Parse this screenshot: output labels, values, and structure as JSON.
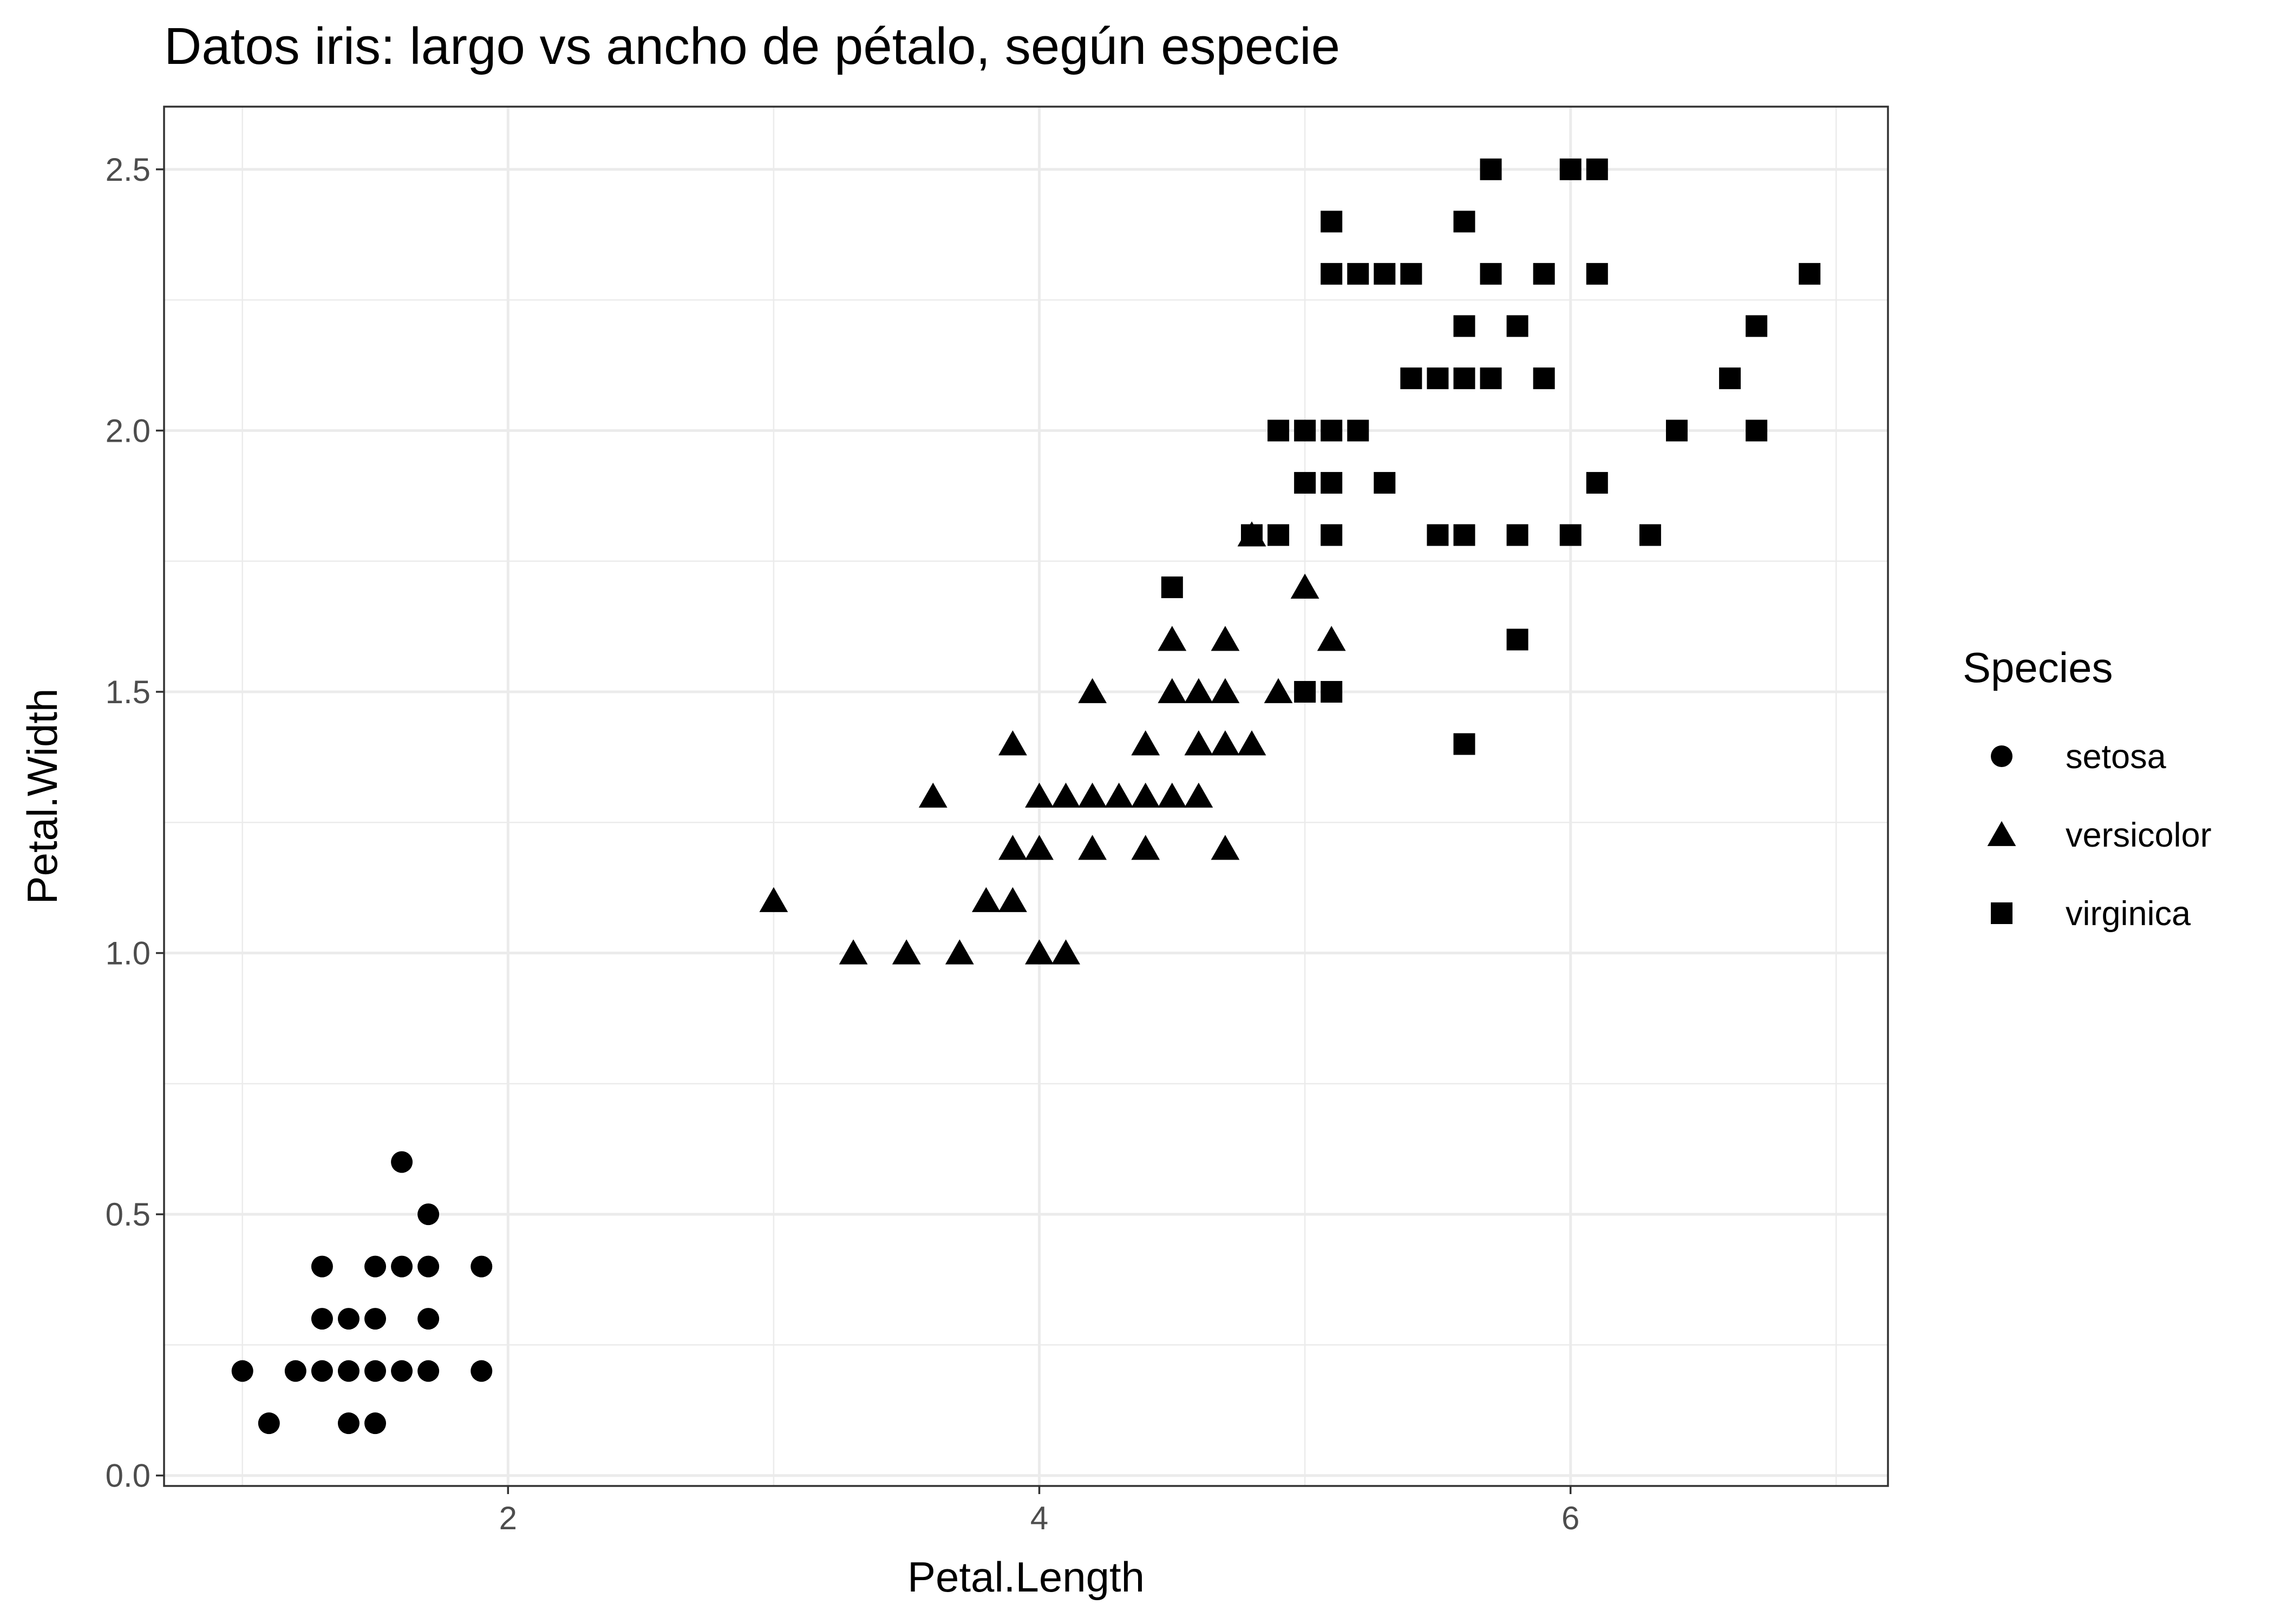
{
  "chart_data": {
    "type": "scatter",
    "title": "Datos iris: largo vs ancho de pétalo, según especie",
    "xlabel": "Petal.Length",
    "ylabel": "Petal.Width",
    "xlim": [
      0.705,
      7.195
    ],
    "ylim": [
      -0.02,
      2.62
    ],
    "xticks": [
      2,
      4,
      6
    ],
    "yticks": [
      0.0,
      0.5,
      1.0,
      1.5,
      2.0,
      2.5
    ],
    "ytick_labels": [
      "0.0",
      "0.5",
      "1.0",
      "1.5",
      "2.0",
      "2.5"
    ],
    "grid": true,
    "legend": {
      "title": "Species",
      "position": "right"
    },
    "series": [
      {
        "name": "setosa",
        "marker": "circle",
        "color": "#000000",
        "points": [
          [
            1.0,
            0.2
          ],
          [
            1.1,
            0.1
          ],
          [
            1.2,
            0.2
          ],
          [
            1.3,
            0.2
          ],
          [
            1.3,
            0.3
          ],
          [
            1.3,
            0.4
          ],
          [
            1.4,
            0.1
          ],
          [
            1.4,
            0.2
          ],
          [
            1.4,
            0.3
          ],
          [
            1.5,
            0.1
          ],
          [
            1.5,
            0.2
          ],
          [
            1.5,
            0.3
          ],
          [
            1.5,
            0.4
          ],
          [
            1.6,
            0.2
          ],
          [
            1.6,
            0.4
          ],
          [
            1.6,
            0.6
          ],
          [
            1.7,
            0.2
          ],
          [
            1.7,
            0.3
          ],
          [
            1.7,
            0.4
          ],
          [
            1.7,
            0.5
          ],
          [
            1.9,
            0.2
          ],
          [
            1.9,
            0.4
          ]
        ]
      },
      {
        "name": "versicolor",
        "marker": "triangle",
        "color": "#000000",
        "points": [
          [
            3.0,
            1.1
          ],
          [
            3.3,
            1.0
          ],
          [
            3.5,
            1.0
          ],
          [
            3.6,
            1.3
          ],
          [
            3.7,
            1.0
          ],
          [
            3.8,
            1.1
          ],
          [
            3.9,
            1.1
          ],
          [
            3.9,
            1.2
          ],
          [
            3.9,
            1.4
          ],
          [
            4.0,
            1.0
          ],
          [
            4.0,
            1.2
          ],
          [
            4.0,
            1.3
          ],
          [
            4.1,
            1.0
          ],
          [
            4.1,
            1.3
          ],
          [
            4.2,
            1.2
          ],
          [
            4.2,
            1.3
          ],
          [
            4.2,
            1.5
          ],
          [
            4.3,
            1.3
          ],
          [
            4.4,
            1.2
          ],
          [
            4.4,
            1.3
          ],
          [
            4.4,
            1.4
          ],
          [
            4.5,
            1.3
          ],
          [
            4.5,
            1.5
          ],
          [
            4.5,
            1.6
          ],
          [
            4.6,
            1.3
          ],
          [
            4.6,
            1.4
          ],
          [
            4.6,
            1.5
          ],
          [
            4.7,
            1.2
          ],
          [
            4.7,
            1.4
          ],
          [
            4.7,
            1.5
          ],
          [
            4.7,
            1.6
          ],
          [
            4.8,
            1.4
          ],
          [
            4.8,
            1.8
          ],
          [
            4.9,
            1.5
          ],
          [
            5.0,
            1.7
          ],
          [
            5.1,
            1.6
          ]
        ]
      },
      {
        "name": "virginica",
        "marker": "square",
        "color": "#000000",
        "points": [
          [
            4.5,
            1.7
          ],
          [
            4.8,
            1.8
          ],
          [
            4.9,
            1.8
          ],
          [
            4.9,
            2.0
          ],
          [
            5.0,
            1.5
          ],
          [
            5.0,
            1.9
          ],
          [
            5.0,
            2.0
          ],
          [
            5.1,
            1.5
          ],
          [
            5.1,
            1.8
          ],
          [
            5.1,
            1.9
          ],
          [
            5.1,
            2.0
          ],
          [
            5.1,
            2.3
          ],
          [
            5.1,
            2.4
          ],
          [
            5.2,
            2.0
          ],
          [
            5.2,
            2.3
          ],
          [
            5.3,
            1.9
          ],
          [
            5.3,
            2.3
          ],
          [
            5.4,
            2.1
          ],
          [
            5.4,
            2.3
          ],
          [
            5.5,
            1.8
          ],
          [
            5.5,
            2.1
          ],
          [
            5.6,
            1.4
          ],
          [
            5.6,
            1.8
          ],
          [
            5.6,
            2.1
          ],
          [
            5.6,
            2.2
          ],
          [
            5.6,
            2.4
          ],
          [
            5.7,
            2.1
          ],
          [
            5.7,
            2.3
          ],
          [
            5.7,
            2.5
          ],
          [
            5.8,
            1.6
          ],
          [
            5.8,
            1.8
          ],
          [
            5.8,
            2.2
          ],
          [
            5.9,
            2.1
          ],
          [
            5.9,
            2.3
          ],
          [
            6.0,
            1.8
          ],
          [
            6.0,
            2.5
          ],
          [
            6.1,
            1.9
          ],
          [
            6.1,
            2.3
          ],
          [
            6.1,
            2.5
          ],
          [
            6.3,
            1.8
          ],
          [
            6.4,
            2.0
          ],
          [
            6.6,
            2.1
          ],
          [
            6.7,
            2.0
          ],
          [
            6.7,
            2.2
          ],
          [
            6.9,
            2.3
          ]
        ]
      }
    ]
  }
}
